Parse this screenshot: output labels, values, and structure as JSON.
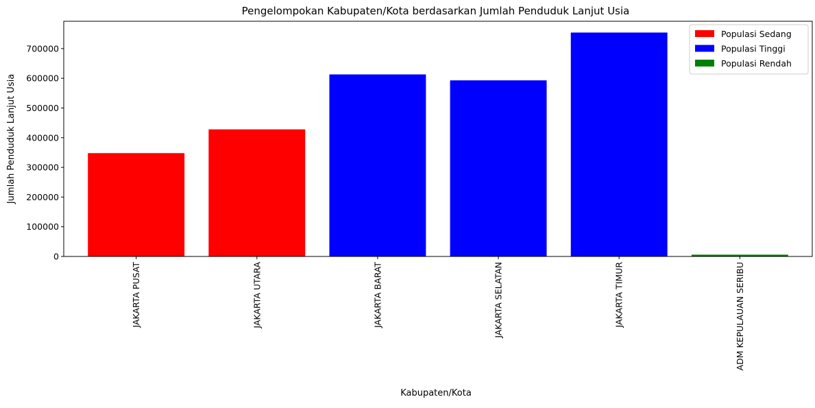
{
  "chart_data": {
    "type": "bar",
    "title": "Pengelompokan Kabupaten/Kota berdasarkan Jumlah Penduduk Lanjut Usia",
    "xlabel": "Kabupaten/Kota",
    "ylabel": "Jumlah Penduduk Lanjut Usia",
    "categories": [
      "JAKARTA PUSAT",
      "JAKARTA UTARA",
      "JAKARTA BARAT",
      "JAKARTA SELATAN",
      "JAKARTA TIMUR",
      "ADM KEPULAUAN SERIBU"
    ],
    "values": [
      348000,
      428000,
      613000,
      593000,
      754000,
      6000
    ],
    "groups": [
      "Populasi Sedang",
      "Populasi Sedang",
      "Populasi Tinggi",
      "Populasi Tinggi",
      "Populasi Tinggi",
      "Populasi Rendah"
    ],
    "ylim": [
      0,
      792000
    ],
    "yticks": [
      0,
      100000,
      200000,
      300000,
      400000,
      500000,
      600000,
      700000
    ],
    "ytick_labels": [
      "0",
      "100000",
      "200000",
      "300000",
      "400000",
      "500000",
      "600000",
      "700000"
    ],
    "legend": [
      {
        "name": "Populasi Sedang",
        "color": "#ff0000"
      },
      {
        "name": "Populasi Tinggi",
        "color": "#0000ff"
      },
      {
        "name": "Populasi Rendah",
        "color": "#008000"
      }
    ],
    "legend_position": "top-right",
    "grid": false
  }
}
